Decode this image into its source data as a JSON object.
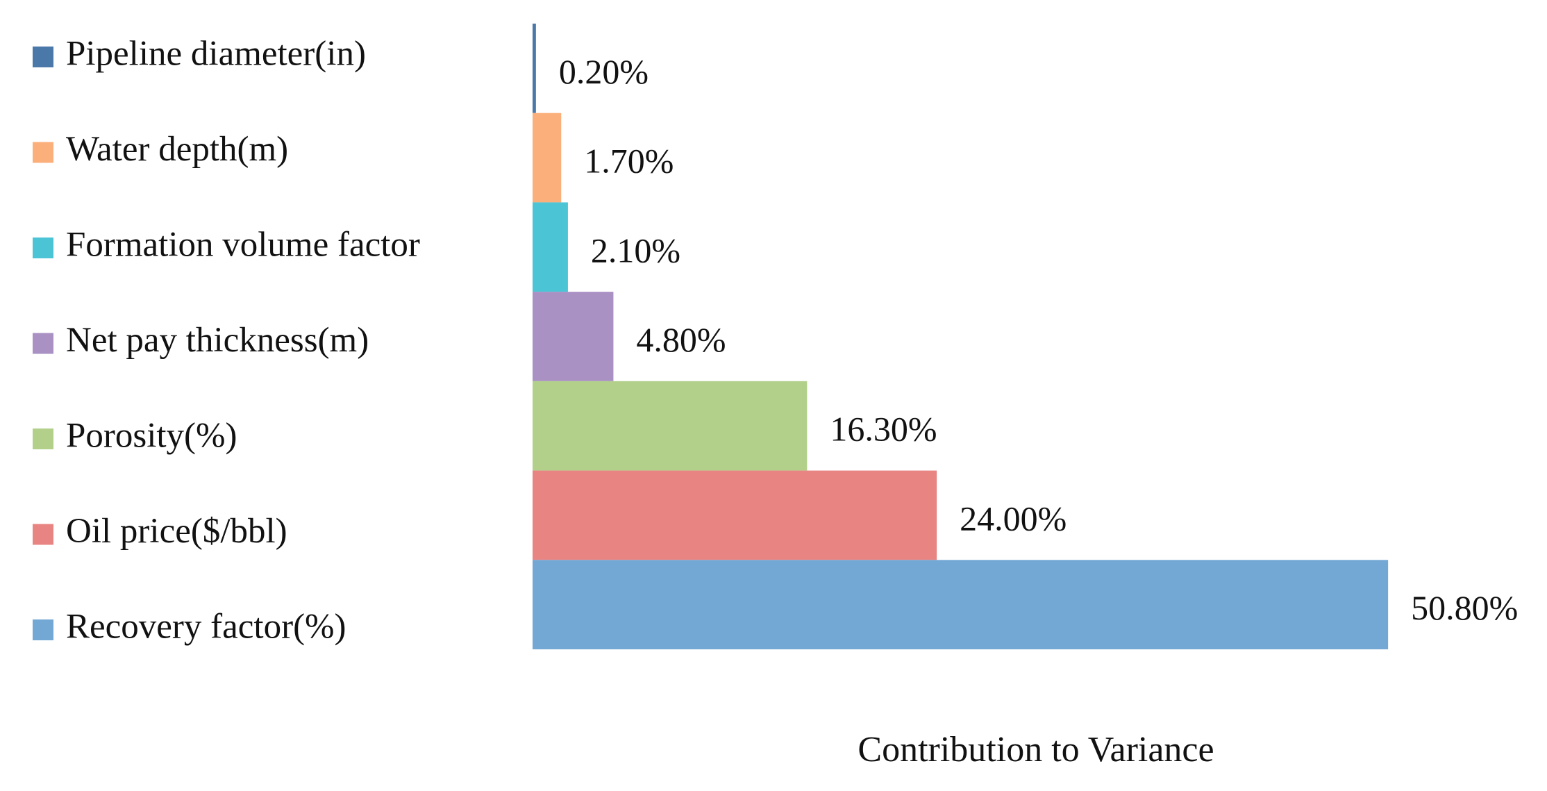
{
  "chart_data": {
    "type": "barh",
    "x_label": "Contribution to Variance",
    "categories": [
      "Pipeline diameter(in)",
      "Water depth(m)",
      "Formation volume factor",
      "Net pay thickness(m)",
      "Porosity(%)",
      "Oil price($/bbl)",
      "Recovery factor(%)"
    ],
    "values": [
      0.2,
      1.7,
      2.1,
      4.8,
      16.3,
      24.0,
      50.8
    ],
    "value_labels": [
      "0.20%",
      "1.70%",
      "2.10%",
      "4.80%",
      "16.30%",
      "24.00%",
      "50.80%"
    ],
    "colors": [
      "#4a78a8",
      "#fbb07c",
      "#4bc4d6",
      "#a991c4",
      "#b3d08b",
      "#e88583",
      "#73a8d5"
    ],
    "xlim": [
      0,
      55
    ],
    "legend": "left"
  }
}
